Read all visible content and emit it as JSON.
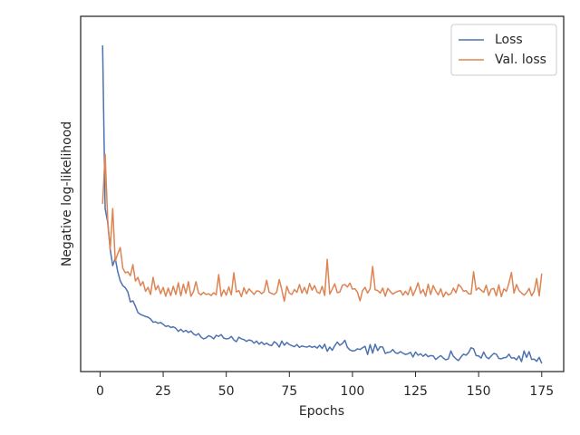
{
  "chart_data": {
    "type": "line",
    "xlabel": "Epochs",
    "ylabel": "Negative log-likelihood",
    "x": [
      1,
      2,
      3,
      4,
      5,
      6,
      7,
      8,
      9,
      10,
      11,
      12,
      13,
      14,
      15,
      16,
      17,
      18,
      19,
      20,
      21,
      22,
      23,
      24,
      25,
      26,
      27,
      28,
      29,
      30,
      31,
      32,
      33,
      34,
      35,
      36,
      37,
      38,
      39,
      40,
      41,
      42,
      43,
      44,
      45,
      46,
      47,
      48,
      49,
      50,
      51,
      52,
      53,
      54,
      55,
      56,
      57,
      58,
      59,
      60,
      61,
      62,
      63,
      64,
      65,
      66,
      67,
      68,
      69,
      70,
      71,
      72,
      73,
      74,
      75,
      76,
      77,
      78,
      79,
      80,
      81,
      82,
      83,
      84,
      85,
      86,
      87,
      88,
      89,
      90,
      91,
      92,
      93,
      94,
      95,
      96,
      97,
      98,
      99,
      100,
      101,
      102,
      103,
      104,
      105,
      106,
      107,
      108,
      109,
      110,
      111,
      112,
      113,
      114,
      115,
      116,
      117,
      118,
      119,
      120,
      121,
      122,
      123,
      124,
      125,
      126,
      127,
      128,
      129,
      130,
      131,
      132,
      133,
      134,
      135,
      136,
      137,
      138,
      139,
      140,
      141,
      142,
      143,
      144,
      145,
      146,
      147,
      148,
      149,
      150,
      151,
      152,
      153,
      154,
      155,
      156,
      157,
      158,
      159,
      160,
      161,
      162,
      163,
      164,
      165,
      166,
      167,
      168,
      169,
      170,
      171,
      172,
      173,
      174,
      175
    ],
    "series": [
      {
        "name": "Loss",
        "color": "#4c72b0",
        "values": [
          91.8,
          45.9,
          42.1,
          34.4,
          29.8,
          31.9,
          28.1,
          25.5,
          24.2,
          23.6,
          22.4,
          19.6,
          19.9,
          18.4,
          16.6,
          16.1,
          15.8,
          15.5,
          15.3,
          14.8,
          13.9,
          14.0,
          13.6,
          13.8,
          13.3,
          12.7,
          12.9,
          12.4,
          12.6,
          12.2,
          11.3,
          11.9,
          11.2,
          11.6,
          11.0,
          11.4,
          10.6,
          10.2,
          10.7,
          9.7,
          9.2,
          9.5,
          10.1,
          9.8,
          9.2,
          10.2,
          9.9,
          10.4,
          9.4,
          9.2,
          9.3,
          9.9,
          8.9,
          8.4,
          9.7,
          9.2,
          9.0,
          8.5,
          8.9,
          8.7,
          8.0,
          8.6,
          7.7,
          8.3,
          7.6,
          8.0,
          7.5,
          7.3,
          8.4,
          7.9,
          6.9,
          8.6,
          7.4,
          8.2,
          7.6,
          7.3,
          7.0,
          7.6,
          6.8,
          7.2,
          7.0,
          6.9,
          7.2,
          6.8,
          7.1,
          6.6,
          7.4,
          6.5,
          7.7,
          5.7,
          6.9,
          6.0,
          7.3,
          8.3,
          7.4,
          7.9,
          8.8,
          6.8,
          6.1,
          5.8,
          5.9,
          6.4,
          6.2,
          6.7,
          7.1,
          4.8,
          7.6,
          5.2,
          7.7,
          5.9,
          7.0,
          6.9,
          5.1,
          5.4,
          5.5,
          6.2,
          5.3,
          5.1,
          5.6,
          5.2,
          4.8,
          5.0,
          5.4,
          4.1,
          5.5,
          4.6,
          5.0,
          4.3,
          4.9,
          4.2,
          4.5,
          4.4,
          3.4,
          4.0,
          4.5,
          3.8,
          3.3,
          3.6,
          5.8,
          4.3,
          3.6,
          3.1,
          4.1,
          4.9,
          4.6,
          5.3,
          6.7,
          6.4,
          4.5,
          4.4,
          3.8,
          5.5,
          4.1,
          3.6,
          4.4,
          5.1,
          4.9,
          3.7,
          3.6,
          3.9,
          4.0,
          4.9,
          3.8,
          3.9,
          3.3,
          4.4,
          2.8,
          5.8,
          4.0,
          5.6,
          3.4,
          3.5,
          2.9,
          4.0,
          2.3
        ]
      },
      {
        "name": "Val. loss",
        "color": "#dd8452",
        "values": [
          47.2,
          61.2,
          42.9,
          34.4,
          45.9,
          31.1,
          33.2,
          34.9,
          29.1,
          27.8,
          28.1,
          27.0,
          30.1,
          25.5,
          26.5,
          24.2,
          25.3,
          22.6,
          23.7,
          21.7,
          26.5,
          23.0,
          24.2,
          21.9,
          23.7,
          21.2,
          23.5,
          21.4,
          24.0,
          21.7,
          25.0,
          21.3,
          24.6,
          22.0,
          25.3,
          21.2,
          22.5,
          25.3,
          22.1,
          21.6,
          22.3,
          21.7,
          21.9,
          21.4,
          22.2,
          21.6,
          27.3,
          21.2,
          23.0,
          21.5,
          23.8,
          21.6,
          27.8,
          22.4,
          22.8,
          21.1,
          23.6,
          21.9,
          23.3,
          22.5,
          21.7,
          22.7,
          22.6,
          21.9,
          22.5,
          25.7,
          22.3,
          22.0,
          21.7,
          22.4,
          25.9,
          23.0,
          19.8,
          24.0,
          22.1,
          21.7,
          23.1,
          22.3,
          24.5,
          22.1,
          23.7,
          21.9,
          24.8,
          22.9,
          24.2,
          22.4,
          22.0,
          24.0,
          21.4,
          31.6,
          21.8,
          23.2,
          24.7,
          22.2,
          22.4,
          24.3,
          24.5,
          23.8,
          24.9,
          23.2,
          23.3,
          22.3,
          19.9,
          22.8,
          23.7,
          22.1,
          23.3,
          29.6,
          23.0,
          22.8,
          22.1,
          23.5,
          21.2,
          23.4,
          22.5,
          21.8,
          22.3,
          22.6,
          22.8,
          21.5,
          22.6,
          21.6,
          23.8,
          21.4,
          23.0,
          25.0,
          22.0,
          23.1,
          21.2,
          24.6,
          21.7,
          24.2,
          22.7,
          21.6,
          23.3,
          21.0,
          22.4,
          21.6,
          21.9,
          23.5,
          22.2,
          24.5,
          23.8,
          22.6,
          22.8,
          21.9,
          21.8,
          28.1,
          22.9,
          23.6,
          22.9,
          22.3,
          24.3,
          21.4,
          23.2,
          23.4,
          21.3,
          24.4,
          21.1,
          23.3,
          22.6,
          24.9,
          27.9,
          22.1,
          24.5,
          22.8,
          22.1,
          21.5,
          22.2,
          23.4,
          21.3,
          22.6,
          26.2,
          21.3,
          27.6
        ]
      }
    ],
    "xlim": [
      -7.7,
      183.7
    ],
    "xticks": [
      0,
      25,
      50,
      75,
      100,
      125,
      150,
      175
    ],
    "ylim": [
      0,
      100
    ],
    "legend": "upper right"
  }
}
